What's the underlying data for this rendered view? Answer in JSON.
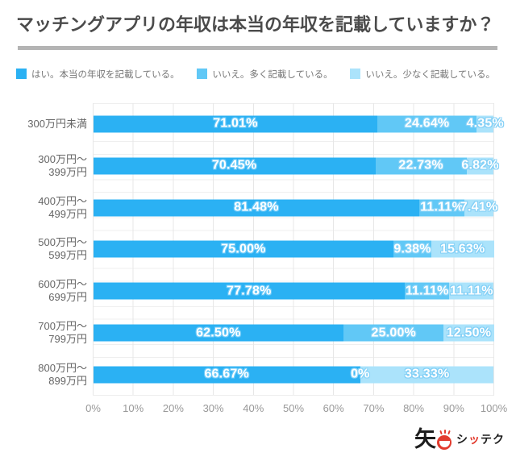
{
  "title": "マッチングアプリの年収は本当の年収を記載していますか？",
  "legend": {
    "items": [
      {
        "label": "はい。本当の年収を記載している。",
        "color": "#2bb1f3"
      },
      {
        "label": "いいえ。多く記載している。",
        "color": "#61c8f6"
      },
      {
        "label": "いいえ。少なく記載している。",
        "color": "#abe3fb"
      }
    ]
  },
  "chart_data": {
    "type": "bar",
    "orientation": "horizontal-stacked",
    "title": "マッチングアプリの年収は本当の年収を記載していますか？",
    "categories": [
      [
        "300万円未満"
      ],
      [
        "300万円〜",
        "399万円"
      ],
      [
        "400万円〜",
        "499万円"
      ],
      [
        "500万円〜",
        "599万円"
      ],
      [
        "600万円〜",
        "699万円"
      ],
      [
        "700万円〜",
        "799万円"
      ],
      [
        "800万円〜",
        "899万円"
      ]
    ],
    "series": [
      {
        "name": "はい。本当の年収を記載している。",
        "color": "#2bb1f3",
        "label_outline": "#6fcaf8",
        "values": [
          71.01,
          70.45,
          81.48,
          75.0,
          77.78,
          62.5,
          66.67
        ]
      },
      {
        "name": "いいえ。多く記載している。",
        "color": "#61c8f6",
        "label_outline": "#8ad4f8",
        "values": [
          24.64,
          22.73,
          11.11,
          9.38,
          11.11,
          25.0,
          0
        ]
      },
      {
        "name": "いいえ。少なく記載している。",
        "color": "#abe3fb",
        "label_outline": "#82cff6",
        "values": [
          4.35,
          6.82,
          7.41,
          15.63,
          11.11,
          12.5,
          33.33
        ]
      }
    ],
    "value_labels": [
      [
        "71.01%",
        "24.64%",
        "4.35%"
      ],
      [
        "70.45%",
        "22.73%",
        "6.82%"
      ],
      [
        "81.48%",
        "11.11%",
        "7.41%"
      ],
      [
        "75.00%",
        "9.38%",
        "15.63%"
      ],
      [
        "77.78%",
        "11.11%",
        "11.11%"
      ],
      [
        "62.50%",
        "25.00%",
        "12.50%"
      ],
      [
        "66.67%",
        "0%",
        "33.33%"
      ]
    ],
    "x_ticks": [
      "0%",
      "10%",
      "20%",
      "30%",
      "40%",
      "50%",
      "60%",
      "70%",
      "80%",
      "90%",
      "100%"
    ],
    "xlim": [
      0,
      100
    ],
    "grid": true,
    "legend_position": "top"
  },
  "logo": {
    "kanji": "矢",
    "name_prefix": "シ",
    "name_accent": "ッ",
    "name_suffix": "テク",
    "accent_color": "#e23b2e"
  },
  "colors": {
    "background": "#ffffff",
    "title_text": "#4b4b4b",
    "divider": "#b4b4b4",
    "legend_text": "#777777",
    "category_text": "#666666",
    "axis_text": "#999999",
    "grid_line": "#e7e7e7",
    "bar_label_text": "#ffffff"
  }
}
